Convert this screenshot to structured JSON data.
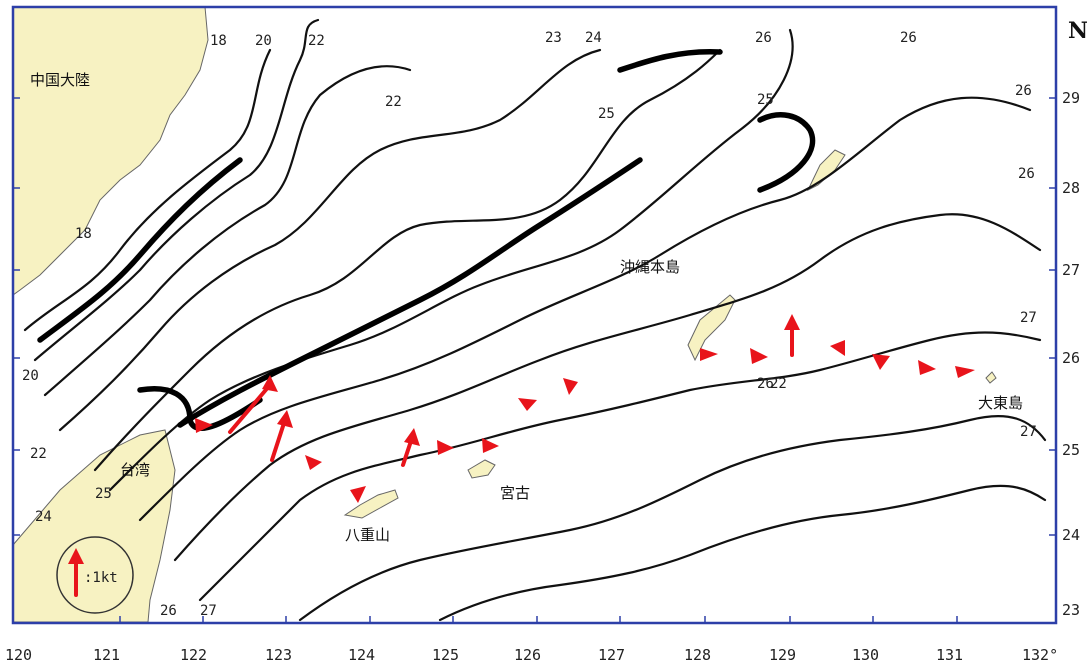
{
  "frame_label_corner": "N",
  "lat_labels": [
    "29",
    "28",
    "27",
    "26",
    "25",
    "24",
    "23"
  ],
  "lon_labels": [
    "120",
    "121",
    "122",
    "123",
    "124",
    "125",
    "126",
    "127",
    "128",
    "129",
    "130",
    "131",
    "132°"
  ],
  "places": {
    "china": "中国大陸",
    "taiwan": "台湾",
    "okinawa": "沖縄本島",
    "miyako": "宮古",
    "yaeyama": "八重山",
    "daito": "大東島"
  },
  "contour_labels": [
    "18",
    "20",
    "22",
    "23",
    "24",
    "26",
    "26",
    "22",
    "25",
    "25",
    "26",
    "26",
    "27",
    "18",
    "20",
    "22",
    "22",
    "24",
    "25",
    "26",
    "27",
    "26",
    "27"
  ],
  "legend": {
    "scale_label": ":1kt"
  },
  "colors": {
    "land": "#f7f2c2",
    "frame": "#2d3fa8",
    "current": "#e8141b"
  }
}
